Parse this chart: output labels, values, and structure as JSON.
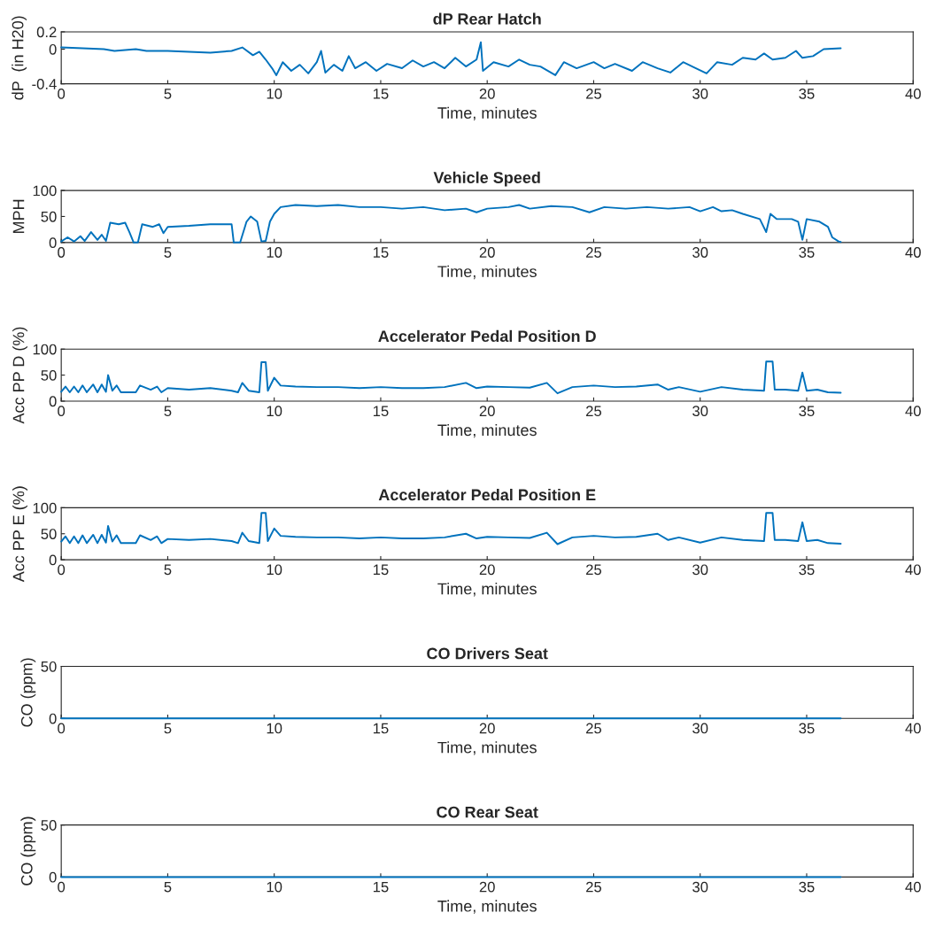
{
  "chart_data": [
    {
      "type": "line",
      "title": "dP Rear Hatch",
      "xlabel": "Time, minutes",
      "ylabel": "dP  (in H20)",
      "xlim": [
        0,
        40
      ],
      "xticks": [
        0,
        5,
        10,
        15,
        20,
        25,
        30,
        35,
        40
      ],
      "ylim": [
        -0.4,
        0.2
      ],
      "yticks": [
        -0.4,
        0,
        0.2
      ],
      "grid": false,
      "series": [
        {
          "color": "#0072bd",
          "x": [
            0,
            1,
            2,
            2.5,
            3.5,
            4,
            5,
            6,
            7,
            8,
            8.5,
            9,
            9.3,
            9.6,
            9.9,
            10.1,
            10.4,
            10.8,
            11.2,
            11.6,
            12,
            12.2,
            12.4,
            12.8,
            13.2,
            13.5,
            13.8,
            14.3,
            14.8,
            15.3,
            16,
            16.5,
            17,
            17.5,
            18,
            18.5,
            19,
            19.5,
            19.7,
            19.8,
            20.3,
            21,
            21.5,
            22,
            22.5,
            23.2,
            23.6,
            24.2,
            25,
            25.5,
            26,
            26.8,
            27.3,
            28,
            28.6,
            29.2,
            29.8,
            30.3,
            30.8,
            31.5,
            32,
            32.6,
            33,
            33.4,
            34,
            34.5,
            34.8,
            35.3,
            35.8,
            36.6
          ],
          "values": [
            0.02,
            0.01,
            0.0,
            -0.02,
            0.0,
            -0.02,
            -0.02,
            -0.03,
            -0.04,
            -0.02,
            0.02,
            -0.07,
            -0.03,
            -0.12,
            -0.22,
            -0.3,
            -0.15,
            -0.25,
            -0.18,
            -0.28,
            -0.15,
            -0.02,
            -0.27,
            -0.18,
            -0.25,
            -0.08,
            -0.22,
            -0.15,
            -0.25,
            -0.17,
            -0.22,
            -0.13,
            -0.2,
            -0.15,
            -0.22,
            -0.1,
            -0.2,
            -0.12,
            0.08,
            -0.25,
            -0.15,
            -0.2,
            -0.12,
            -0.18,
            -0.2,
            -0.3,
            -0.15,
            -0.22,
            -0.15,
            -0.22,
            -0.17,
            -0.25,
            -0.15,
            -0.22,
            -0.27,
            -0.15,
            -0.22,
            -0.28,
            -0.15,
            -0.18,
            -0.1,
            -0.12,
            -0.05,
            -0.12,
            -0.1,
            -0.02,
            -0.1,
            -0.08,
            0.0,
            0.01
          ]
        }
      ]
    },
    {
      "type": "line",
      "title": "Vehicle Speed",
      "xlabel": "Time, minutes",
      "ylabel": "MPH",
      "xlim": [
        0,
        40
      ],
      "xticks": [
        0,
        5,
        10,
        15,
        20,
        25,
        30,
        35,
        40
      ],
      "ylim": [
        0,
        100
      ],
      "yticks": [
        0,
        50,
        100
      ],
      "grid": false,
      "series": [
        {
          "color": "#0072bd",
          "x": [
            0,
            0.3,
            0.6,
            0.9,
            1.1,
            1.4,
            1.7,
            1.9,
            2.1,
            2.3,
            2.7,
            3.0,
            3.2,
            3.4,
            3.6,
            3.8,
            4.3,
            4.6,
            4.8,
            5.0,
            6,
            7,
            8,
            8.1,
            8.4,
            8.7,
            8.9,
            9.2,
            9.4,
            9.6,
            9.8,
            10,
            10.3,
            11,
            12,
            13,
            14,
            15,
            16,
            17,
            18,
            19,
            19.5,
            20,
            21,
            21.5,
            22,
            23,
            24,
            24.8,
            25.5,
            26.5,
            27.5,
            28.5,
            29.5,
            30,
            30.6,
            31,
            31.5,
            32,
            32.8,
            33.1,
            33.3,
            33.6,
            34.3,
            34.6,
            34.8,
            35,
            35.6,
            36,
            36.2,
            36.5,
            36.6
          ],
          "values": [
            2,
            10,
            2,
            12,
            3,
            20,
            5,
            15,
            3,
            38,
            35,
            38,
            20,
            0,
            0,
            35,
            30,
            35,
            18,
            30,
            32,
            35,
            35,
            0,
            0,
            40,
            50,
            40,
            2,
            3,
            40,
            55,
            68,
            72,
            70,
            72,
            68,
            68,
            65,
            68,
            62,
            65,
            58,
            65,
            68,
            72,
            65,
            70,
            68,
            58,
            68,
            65,
            68,
            65,
            68,
            60,
            68,
            60,
            62,
            55,
            45,
            20,
            55,
            45,
            45,
            40,
            5,
            45,
            40,
            30,
            10,
            2,
            1
          ]
        }
      ]
    },
    {
      "type": "line",
      "title": "Accelerator Pedal Position D",
      "xlabel": "Time, minutes",
      "ylabel": "Acc PP D (%)",
      "xlim": [
        0,
        40
      ],
      "xticks": [
        0,
        5,
        10,
        15,
        20,
        25,
        30,
        35,
        40
      ],
      "ylim": [
        0,
        100
      ],
      "yticks": [
        0,
        50,
        100
      ],
      "grid": false,
      "series": [
        {
          "color": "#0072bd",
          "x": [
            0,
            0.2,
            0.4,
            0.6,
            0.8,
            1,
            1.2,
            1.5,
            1.7,
            1.9,
            2.1,
            2.2,
            2.4,
            2.6,
            2.8,
            3.5,
            3.7,
            4.2,
            4.5,
            4.7,
            5,
            6,
            7,
            8,
            8.3,
            8.5,
            8.8,
            9.3,
            9.4,
            9.6,
            9.7,
            10,
            10.3,
            11,
            12,
            13,
            14,
            15,
            16,
            17,
            18,
            19,
            19.5,
            20,
            21,
            22,
            22.8,
            23.3,
            24,
            25,
            26,
            27,
            28,
            28.5,
            29,
            30,
            31,
            32,
            33,
            33.1,
            33.4,
            33.5,
            34,
            34.6,
            34.8,
            35,
            35.5,
            36,
            36.6
          ],
          "values": [
            18,
            28,
            17,
            28,
            17,
            30,
            17,
            32,
            17,
            32,
            18,
            50,
            20,
            30,
            17,
            17,
            30,
            22,
            28,
            17,
            25,
            22,
            25,
            20,
            17,
            35,
            20,
            17,
            75,
            75,
            20,
            45,
            30,
            28,
            27,
            27,
            25,
            27,
            25,
            25,
            27,
            35,
            25,
            28,
            27,
            26,
            35,
            15,
            27,
            30,
            27,
            28,
            32,
            22,
            27,
            18,
            27,
            22,
            20,
            76,
            76,
            22,
            22,
            20,
            55,
            20,
            22,
            17,
            16
          ]
        }
      ]
    },
    {
      "type": "line",
      "title": "Accelerator Pedal Position E",
      "xlabel": "Time, minutes",
      "ylabel": "Acc PP E (%)",
      "xlim": [
        0,
        40
      ],
      "xticks": [
        0,
        5,
        10,
        15,
        20,
        25,
        30,
        35,
        40
      ],
      "ylim": [
        0,
        100
      ],
      "yticks": [
        0,
        50,
        100
      ],
      "grid": false,
      "series": [
        {
          "color": "#0072bd",
          "x": [
            0,
            0.2,
            0.4,
            0.6,
            0.8,
            1,
            1.2,
            1.5,
            1.7,
            1.9,
            2.1,
            2.2,
            2.4,
            2.6,
            2.8,
            3.5,
            3.7,
            4.2,
            4.5,
            4.7,
            5,
            6,
            7,
            8,
            8.3,
            8.5,
            8.8,
            9.3,
            9.4,
            9.6,
            9.7,
            10,
            10.3,
            11,
            12,
            13,
            14,
            15,
            16,
            17,
            18,
            19,
            19.5,
            20,
            21,
            22,
            22.8,
            23.3,
            24,
            25,
            26,
            27,
            28,
            28.5,
            29,
            30,
            31,
            32,
            33,
            33.1,
            33.4,
            33.5,
            34,
            34.6,
            34.8,
            35,
            35.5,
            36,
            36.6
          ],
          "values": [
            35,
            45,
            32,
            45,
            32,
            47,
            32,
            48,
            32,
            48,
            33,
            65,
            35,
            47,
            32,
            32,
            47,
            38,
            45,
            32,
            40,
            38,
            40,
            36,
            32,
            52,
            36,
            32,
            90,
            90,
            36,
            60,
            46,
            44,
            43,
            43,
            41,
            43,
            41,
            41,
            43,
            50,
            41,
            44,
            43,
            42,
            52,
            30,
            43,
            46,
            43,
            44,
            50,
            38,
            43,
            33,
            43,
            38,
            36,
            90,
            90,
            38,
            38,
            36,
            72,
            36,
            38,
            32,
            31
          ]
        }
      ]
    },
    {
      "type": "line",
      "title": "CO Drivers Seat",
      "xlabel": "Time, minutes",
      "ylabel": "CO (ppm)",
      "xlim": [
        0,
        40
      ],
      "xticks": [
        0,
        5,
        10,
        15,
        20,
        25,
        30,
        35,
        40
      ],
      "ylim": [
        0,
        50
      ],
      "yticks": [
        0,
        50
      ],
      "grid": false,
      "series": [
        {
          "color": "#0072bd",
          "x": [
            0,
            36.6
          ],
          "values": [
            0,
            0
          ]
        }
      ]
    },
    {
      "type": "line",
      "title": "CO Rear Seat",
      "xlabel": "Time, minutes",
      "ylabel": "CO (ppm)",
      "xlim": [
        0,
        40
      ],
      "xticks": [
        0,
        5,
        10,
        15,
        20,
        25,
        30,
        35,
        40
      ],
      "ylim": [
        0,
        50
      ],
      "yticks": [
        0,
        50
      ],
      "grid": false,
      "series": [
        {
          "color": "#0072bd",
          "x": [
            0,
            36.6
          ],
          "values": [
            0,
            0
          ]
        }
      ]
    }
  ]
}
